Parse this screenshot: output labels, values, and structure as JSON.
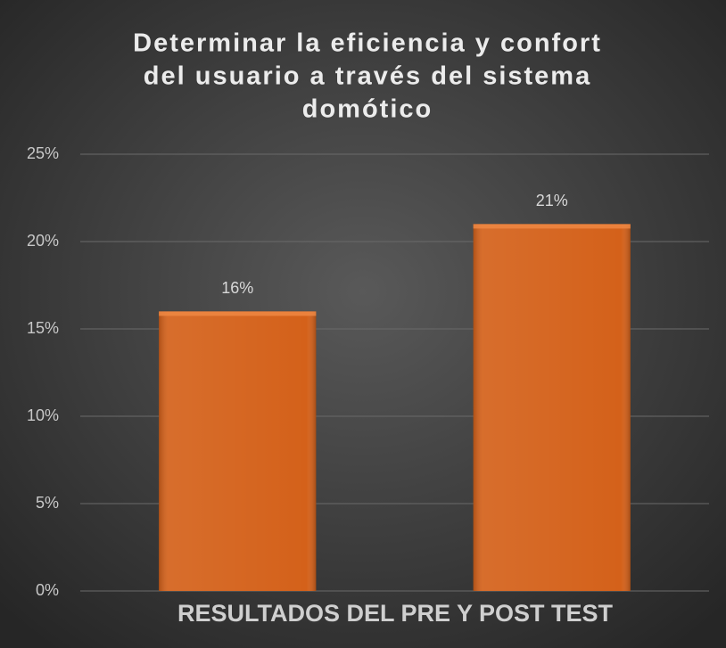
{
  "chart_data": {
    "type": "bar",
    "title": [
      "Determinar la eficiencia y confort",
      "del usuario a través del sistema",
      "domótico"
    ],
    "x_label": "RESULTADOS DEL PRE Y POST TEST",
    "categories": [
      null,
      null
    ],
    "values": [
      16,
      21
    ],
    "value_labels": [
      "16%",
      "21%"
    ],
    "color": "#d4611a",
    "ylim": [
      0,
      25
    ],
    "yticks": [
      {
        "value": 0,
        "label": "0%"
      },
      {
        "value": 5,
        "label": "5%"
      },
      {
        "value": 10,
        "label": "10%"
      },
      {
        "value": 15,
        "label": "15%"
      },
      {
        "value": 20,
        "label": "20%"
      },
      {
        "value": 25,
        "label": "25%"
      }
    ],
    "grid": true
  }
}
